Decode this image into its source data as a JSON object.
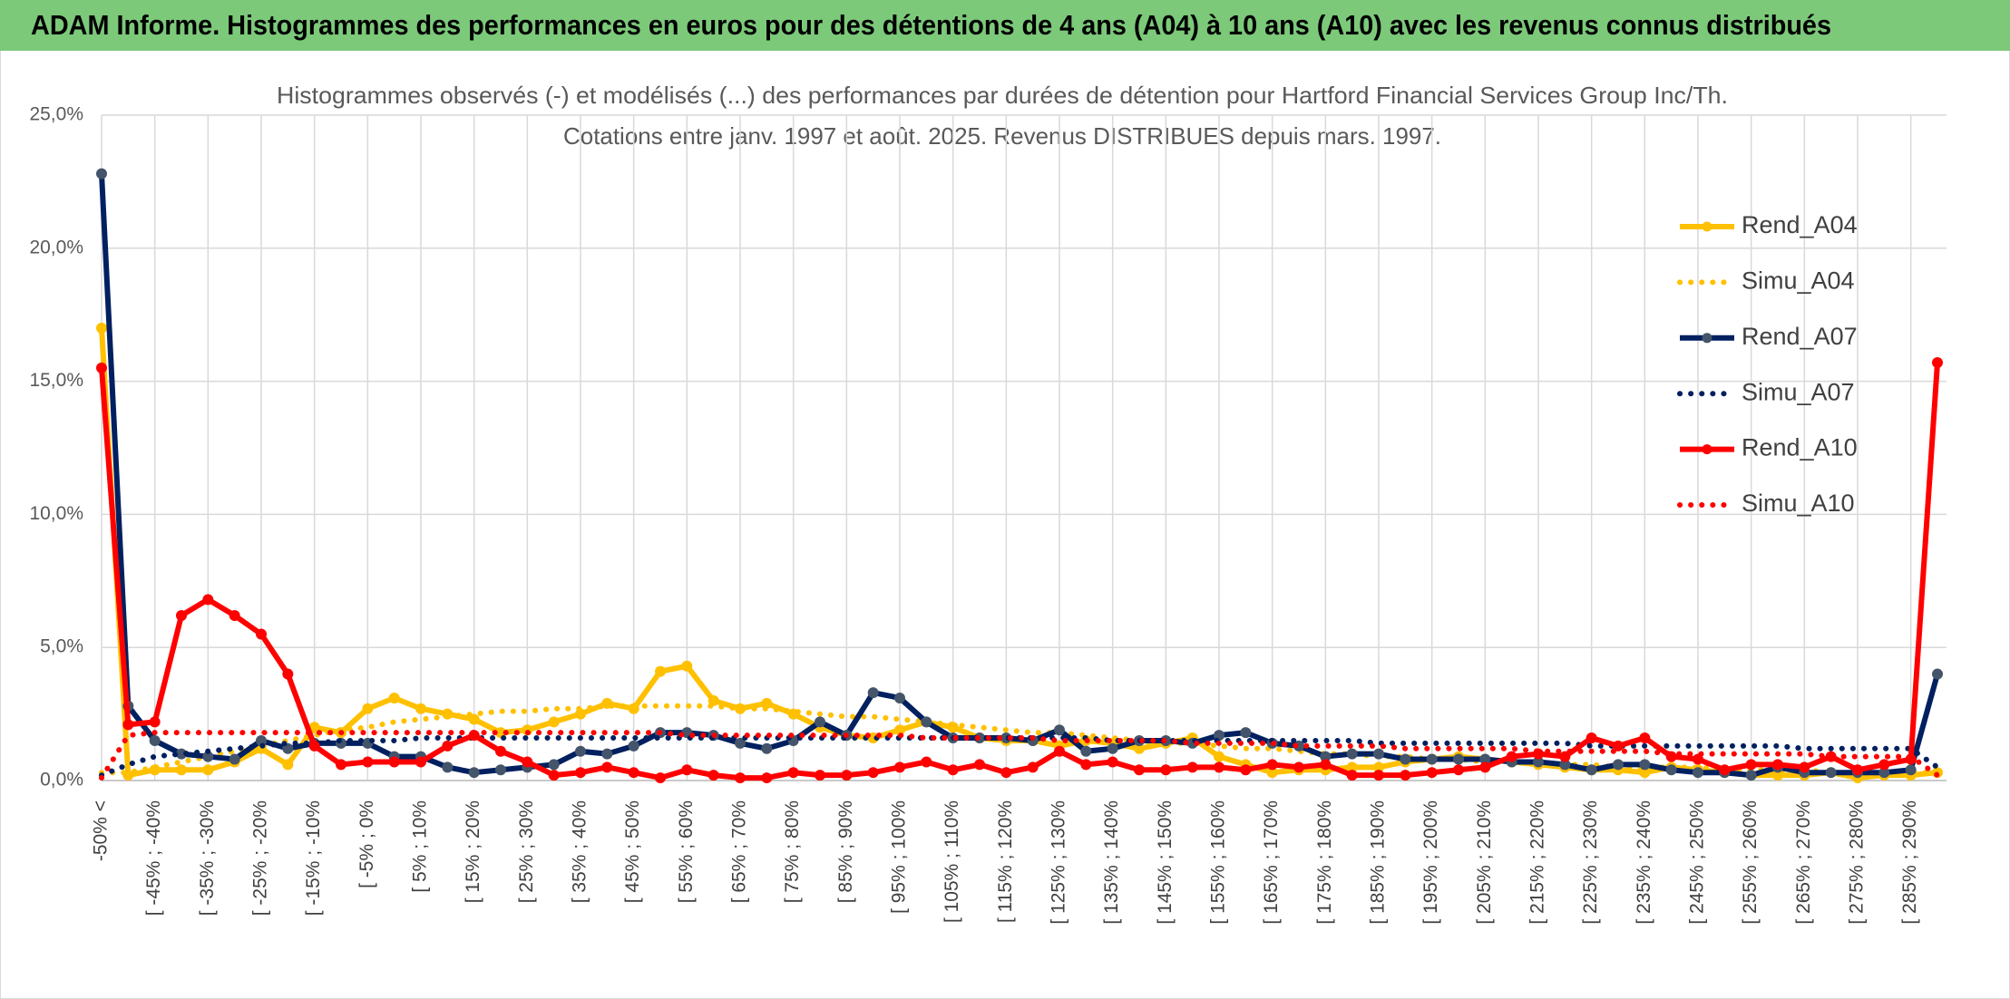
{
  "chart_data": {
    "type": "line",
    "title": "ADAM Informe. Histogrammes des performances en euros pour des détentions de 4 ans (A04) à 10 ans (A10) avec les revenus connus distribués",
    "subtitle": [
      "Histogrammes observés (-) et modélisés (...) des performances par durées de détention pour Hartford Financial Services Group Inc/Th.",
      "Cotations entre janv. 1997 et août. 2025. Revenus DISTRIBUES depuis mars. 1997."
    ],
    "categories": [
      "-50% <",
      null,
      "[ -45% ; -40%",
      null,
      "[ -35% ; -30%",
      null,
      "[ -25% ; -20%",
      null,
      "[ -15% ; -10%",
      null,
      "[ -5% ; 0%",
      null,
      "[ 5% ; 10%",
      null,
      "[ 15% ; 20%",
      null,
      "[ 25% ; 30%",
      null,
      "[ 35% ; 40%",
      null,
      "[ 45% ; 50%",
      null,
      "[ 55% ; 60%",
      null,
      "[ 65% ; 70%",
      null,
      "[ 75% ; 80%",
      null,
      "[ 85% ; 90%",
      null,
      "[ 95% ; 100%",
      null,
      "[ 105% ; 110%",
      null,
      "[ 115% ; 120%",
      null,
      "[ 125% ; 130%",
      null,
      "[ 135% ; 140%",
      null,
      "[ 145% ; 150%",
      null,
      "[ 155% ; 160%",
      null,
      "[ 165% ; 170%",
      null,
      "[ 175% ; 180%",
      null,
      "[ 185% ; 190%",
      null,
      "[ 195% ; 200%",
      null,
      "[ 205% ; 210%",
      null,
      "[ 215% ; 220%",
      null,
      "[ 225% ; 230%",
      null,
      "[ 235% ; 240%",
      null,
      "[ 245% ; 250%",
      null,
      "[ 255% ; 260%",
      null,
      "[ 265% ; 270%",
      null,
      "[ 275% ; 280%",
      null,
      "[ 285% ; 290%",
      null
    ],
    "series": [
      {
        "name": "Rend_A04",
        "color": "#ffc000",
        "line_style": "solid",
        "markers": true,
        "values": [
          17.0,
          0.2,
          0.4,
          0.4,
          0.4,
          0.7,
          1.2,
          0.6,
          2.0,
          1.8,
          2.7,
          3.1,
          2.7,
          2.5,
          2.3,
          1.8,
          1.9,
          2.2,
          2.5,
          2.9,
          2.7,
          4.1,
          4.3,
          3.0,
          2.7,
          2.9,
          2.5,
          2.0,
          1.7,
          1.6,
          1.9,
          2.2,
          2.0,
          1.6,
          1.5,
          1.5,
          1.3,
          1.5,
          1.4,
          1.2,
          1.4,
          1.6,
          0.9,
          0.6,
          0.3,
          0.4,
          0.4,
          0.5,
          0.5,
          0.7,
          0.8,
          0.9,
          0.8,
          0.7,
          0.6,
          0.5,
          0.4,
          0.4,
          0.3,
          0.5,
          0.4,
          0.3,
          0.2,
          0.2,
          0.2,
          0.3,
          0.1,
          0.2,
          0.2,
          0.3
        ]
      },
      {
        "name": "Simu_A04",
        "color": "#ffc000",
        "line_style": "dotted",
        "markers": false,
        "values": [
          0.3,
          0.3,
          0.5,
          0.7,
          0.9,
          1.1,
          1.3,
          1.5,
          1.7,
          1.9,
          2.0,
          2.2,
          2.3,
          2.4,
          2.5,
          2.6,
          2.6,
          2.7,
          2.7,
          2.8,
          2.8,
          2.8,
          2.8,
          2.8,
          2.7,
          2.7,
          2.6,
          2.5,
          2.4,
          2.4,
          2.3,
          2.2,
          2.1,
          2.0,
          1.9,
          1.8,
          1.8,
          1.7,
          1.6,
          1.5,
          1.4,
          1.4,
          1.3,
          1.2,
          1.2,
          1.1,
          1.0,
          1.0,
          0.9,
          0.9,
          0.8,
          0.8,
          0.7,
          0.7,
          0.7,
          0.6,
          0.6,
          0.5,
          0.5,
          0.5,
          0.5,
          0.4,
          0.4,
          0.4,
          0.4,
          0.3,
          0.3,
          0.3,
          0.3,
          0.3
        ]
      },
      {
        "name": "Rend_A07",
        "color": "#002060",
        "line_style": "solid",
        "markers": true,
        "values": [
          22.8,
          2.8,
          1.5,
          1.0,
          0.9,
          0.8,
          1.5,
          1.2,
          1.4,
          1.4,
          1.4,
          0.9,
          0.9,
          0.5,
          0.3,
          0.4,
          0.5,
          0.6,
          1.1,
          1.0,
          1.3,
          1.8,
          1.8,
          1.7,
          1.4,
          1.2,
          1.5,
          2.2,
          1.7,
          3.3,
          3.1,
          2.2,
          1.6,
          1.6,
          1.6,
          1.5,
          1.9,
          1.1,
          1.2,
          1.5,
          1.5,
          1.4,
          1.7,
          1.8,
          1.4,
          1.3,
          0.9,
          1.0,
          1.0,
          0.8,
          0.8,
          0.8,
          0.8,
          0.7,
          0.7,
          0.6,
          0.4,
          0.6,
          0.6,
          0.4,
          0.3,
          0.3,
          0.2,
          0.5,
          0.3,
          0.3,
          0.3,
          0.3,
          0.4,
          4.0
        ]
      },
      {
        "name": "Simu_A07",
        "color": "#002060",
        "line_style": "dotted",
        "markers": false,
        "values": [
          0.2,
          0.6,
          0.9,
          1.0,
          1.1,
          1.2,
          1.3,
          1.4,
          1.4,
          1.5,
          1.5,
          1.5,
          1.6,
          1.6,
          1.6,
          1.6,
          1.6,
          1.6,
          1.6,
          1.6,
          1.6,
          1.6,
          1.6,
          1.6,
          1.6,
          1.6,
          1.6,
          1.6,
          1.6,
          1.6,
          1.6,
          1.6,
          1.6,
          1.6,
          1.6,
          1.6,
          1.6,
          1.6,
          1.5,
          1.5,
          1.5,
          1.5,
          1.5,
          1.5,
          1.5,
          1.5,
          1.5,
          1.5,
          1.4,
          1.4,
          1.4,
          1.4,
          1.4,
          1.4,
          1.4,
          1.4,
          1.3,
          1.3,
          1.3,
          1.3,
          1.3,
          1.3,
          1.3,
          1.3,
          1.2,
          1.2,
          1.2,
          1.2,
          1.2,
          0.5
        ]
      },
      {
        "name": "Rend_A10",
        "color": "#ff0000",
        "line_style": "solid",
        "markers": true,
        "values": [
          15.5,
          2.1,
          2.2,
          6.2,
          6.8,
          6.2,
          5.5,
          4.0,
          1.3,
          0.6,
          0.7,
          0.7,
          0.7,
          1.3,
          1.7,
          1.1,
          0.7,
          0.2,
          0.3,
          0.5,
          0.3,
          0.1,
          0.4,
          0.2,
          0.1,
          0.1,
          0.3,
          0.2,
          0.2,
          0.3,
          0.5,
          0.7,
          0.4,
          0.6,
          0.3,
          0.5,
          1.1,
          0.6,
          0.7,
          0.4,
          0.4,
          0.5,
          0.5,
          0.4,
          0.6,
          0.5,
          0.6,
          0.2,
          0.2,
          0.2,
          0.3,
          0.4,
          0.5,
          0.9,
          1.0,
          0.9,
          1.6,
          1.3,
          1.6,
          0.9,
          0.8,
          0.4,
          0.6,
          0.6,
          0.5,
          0.9,
          0.4,
          0.6,
          0.8,
          15.7
        ]
      },
      {
        "name": "Simu_A10",
        "color": "#ff0000",
        "line_style": "dotted",
        "markers": false,
        "values": [
          0.1,
          1.7,
          1.8,
          1.8,
          1.8,
          1.8,
          1.8,
          1.8,
          1.8,
          1.8,
          1.8,
          1.8,
          1.8,
          1.8,
          1.8,
          1.8,
          1.8,
          1.8,
          1.8,
          1.8,
          1.8,
          1.8,
          1.7,
          1.7,
          1.7,
          1.7,
          1.7,
          1.7,
          1.7,
          1.7,
          1.7,
          1.6,
          1.6,
          1.6,
          1.6,
          1.6,
          1.5,
          1.5,
          1.5,
          1.5,
          1.5,
          1.4,
          1.4,
          1.4,
          1.4,
          1.3,
          1.3,
          1.3,
          1.3,
          1.2,
          1.2,
          1.2,
          1.2,
          1.2,
          1.1,
          1.1,
          1.1,
          1.1,
          1.1,
          1.0,
          1.0,
          1.0,
          1.0,
          1.0,
          1.0,
          0.9,
          0.9,
          0.9,
          0.9,
          0.2
        ]
      }
    ],
    "ylim": [
      0,
      25
    ],
    "yticks": [
      {
        "value": 0,
        "label": "0,0%"
      },
      {
        "value": 5,
        "label": "5,0%"
      },
      {
        "value": 10,
        "label": "10,0%"
      },
      {
        "value": 15,
        "label": "15,0%"
      },
      {
        "value": 20,
        "label": "20,0%"
      },
      {
        "value": 25,
        "label": "25,0%"
      }
    ],
    "grid": true,
    "legend": "right"
  }
}
